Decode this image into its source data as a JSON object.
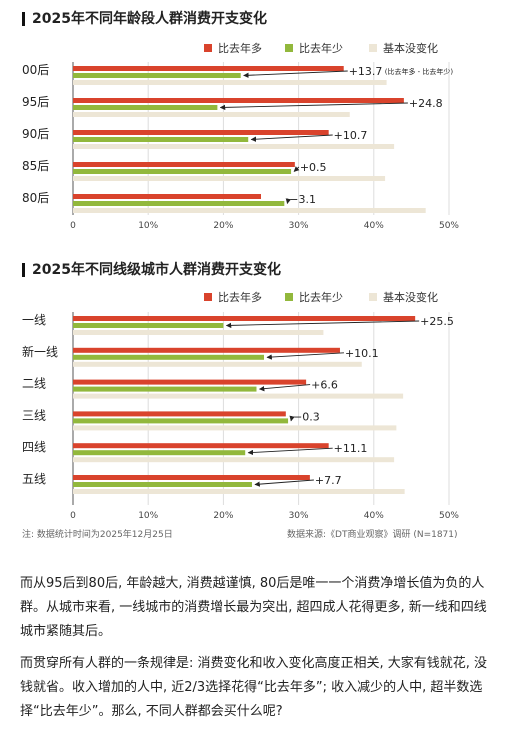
{
  "legend": {
    "more": "比去年多",
    "less": "比去年少",
    "same": "基本没变化"
  },
  "colors": {
    "more": "#d9432c",
    "less": "#92b83c",
    "same": "#ede6d6",
    "arrow": "#222222"
  },
  "chart_data": [
    {
      "type": "bar",
      "title": "2025年不同年龄段人群消费开支变化",
      "categories": [
        "00后",
        "95后",
        "90后",
        "85后",
        "80后"
      ],
      "series": [
        {
          "name": "比去年多",
          "values": [
            36,
            44,
            34,
            29.5,
            25
          ]
        },
        {
          "name": "比去年少",
          "values": [
            22.3,
            19.2,
            23.3,
            29,
            28.1
          ]
        },
        {
          "name": "基本没变化",
          "values": [
            41.7,
            36.8,
            42.7,
            41.5,
            46.9
          ]
        }
      ],
      "annotations": [
        "+13.7",
        "+24.8",
        "+10.7",
        "+0.5",
        "−3.1"
      ],
      "annotation_note": "(比去年多 - 比去年少)",
      "xlim": [
        0,
        50
      ],
      "xticks": [
        "0",
        "10%",
        "20%",
        "30%",
        "40%",
        "50%"
      ]
    },
    {
      "type": "bar",
      "title": "2025年不同线级城市人群消费开支变化",
      "categories": [
        "一线",
        "新一线",
        "二线",
        "三线",
        "四线",
        "五线"
      ],
      "series": [
        {
          "name": "比去年多",
          "values": [
            45.5,
            35.5,
            31,
            28.3,
            34,
            31.5
          ]
        },
        {
          "name": "比去年少",
          "values": [
            20,
            25.4,
            24.4,
            28.6,
            22.9,
            23.8
          ]
        },
        {
          "name": "基本没变化",
          "values": [
            33.3,
            38.4,
            43.9,
            43,
            42.7,
            44.1
          ]
        }
      ],
      "annotations": [
        "+25.5",
        "+10.1",
        "+6.6",
        "−0.3",
        "+11.1",
        "+7.7"
      ],
      "xlim": [
        0,
        50
      ],
      "xticks": [
        "0",
        "10%",
        "20%",
        "30%",
        "40%",
        "50%"
      ]
    }
  ],
  "footer": {
    "note": "注: 数据统计时间为2025年12月25日",
    "source": "数据来源:《DT商业观察》调研 (N=1871)"
  },
  "paragraphs": [
    "而从95后到80后, 年龄越大, 消费越谨慎, 80后是唯一一个消费净增长值为负的人群。从城市来看, 一线城市的消费增长最为突出, 超四成人花得更多, 新一线和四线城市紧随其后。",
    "而贯穿所有人群的一条规律是: 消费变化和收入变化高度正相关, 大家有钱就花, 没钱就省。收入增加的人中, 近2/3选择花得“比去年多”; 收入减少的人中, 超半数选择“比去年少”。那么, 不同人群都会买什么呢?"
  ]
}
